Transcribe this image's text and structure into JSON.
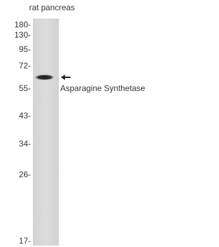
{
  "sample": "rat pancreas",
  "markers": [
    "180-",
    "130-",
    "95-",
    "72-",
    "55-",
    "43-",
    "34-",
    "26-",
    "17-"
  ],
  "band_label": "Asparagine Synthetase"
}
